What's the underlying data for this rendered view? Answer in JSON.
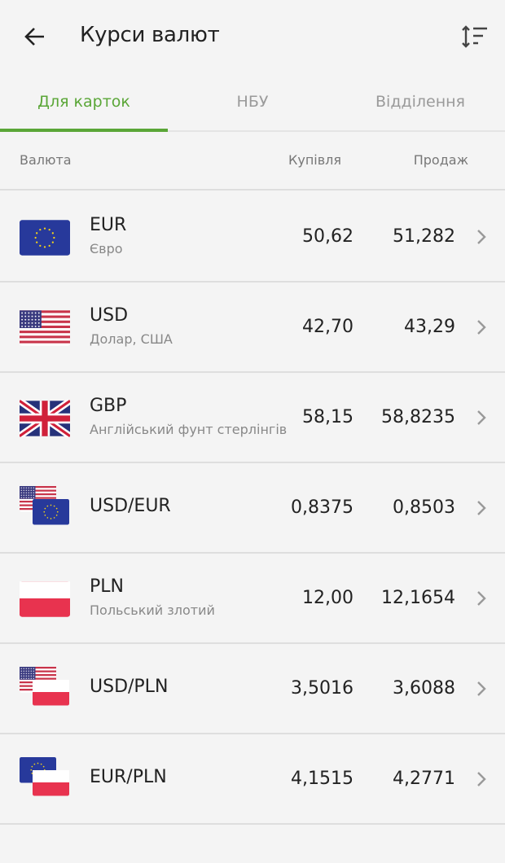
{
  "header": {
    "title": "Курси валют",
    "back_icon": "arrow-left-icon",
    "sort_icon": "sort-icon"
  },
  "tabs": [
    {
      "label": "Для карток",
      "active": true
    },
    {
      "label": "НБУ",
      "active": false
    },
    {
      "label": "Відділення",
      "active": false
    }
  ],
  "columns": {
    "currency": "Валюта",
    "buy": "Купівля",
    "sell": "Продаж"
  },
  "accent": "#5aa637",
  "rates": [
    {
      "code": "EUR",
      "name": "Євро",
      "buy": "50,62",
      "sell": "51,282",
      "flags": [
        "eu"
      ]
    },
    {
      "code": "USD",
      "name": "Долар, США",
      "buy": "42,70",
      "sell": "43,29",
      "flags": [
        "us"
      ]
    },
    {
      "code": "GBP",
      "name": "Англійський фунт стерлінгів",
      "buy": "58,15",
      "sell": "58,8235",
      "flags": [
        "gb"
      ]
    },
    {
      "code": "USD/EUR",
      "name": "",
      "buy": "0,8375",
      "sell": "0,8503",
      "flags": [
        "us",
        "eu"
      ]
    },
    {
      "code": "PLN",
      "name": "Польський злотий",
      "buy": "12,00",
      "sell": "12,1654",
      "flags": [
        "pl"
      ]
    },
    {
      "code": "USD/PLN",
      "name": "",
      "buy": "3,5016",
      "sell": "3,6088",
      "flags": [
        "us",
        "pl"
      ]
    },
    {
      "code": "EUR/PLN",
      "name": "",
      "buy": "4,1515",
      "sell": "4,2771",
      "flags": [
        "eu",
        "pl"
      ]
    }
  ]
}
